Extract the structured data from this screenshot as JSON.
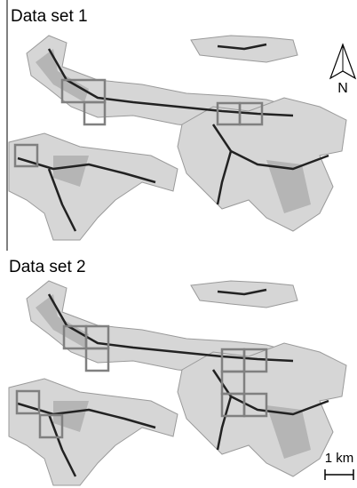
{
  "panels": [
    {
      "label": "Data set 1"
    },
    {
      "label": "Data set 2"
    }
  ],
  "north_arrow": {
    "label": "N"
  },
  "scale_bar": {
    "label": "1 km"
  }
}
